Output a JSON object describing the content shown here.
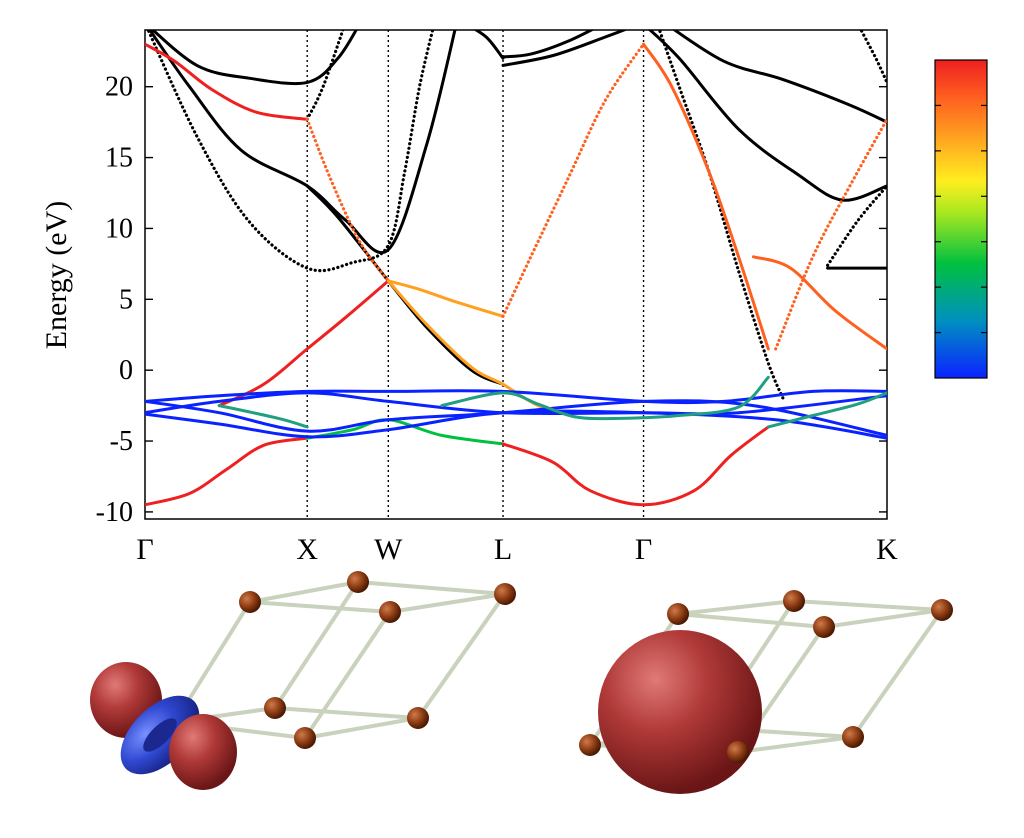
{
  "chart_data": {
    "type": "line",
    "title": "",
    "ylabel": "Energy (eV)",
    "xlabel": "",
    "ylim": [
      -10.5,
      24
    ],
    "xlim": [
      0,
      1
    ],
    "y_ticks": [
      -10,
      -5,
      0,
      5,
      10,
      15,
      20
    ],
    "k_points": [
      {
        "label": "Γ",
        "x": 0.0
      },
      {
        "label": "X",
        "x": 0.2186
      },
      {
        "label": "W",
        "x": 0.3279
      },
      {
        "label": "L",
        "x": 0.4825
      },
      {
        "label": "Γ",
        "x": 0.6719
      },
      {
        "label": "K",
        "x": 1.0
      }
    ],
    "colorbar": {
      "orientation": "vertical",
      "colors_bottom_to_top": [
        "#0a22ff",
        "#0090c0",
        "#00c040",
        "#a8e820",
        "#ffee20",
        "#ffa020",
        "#ff6020",
        "#ee2020"
      ],
      "tick_count": 6,
      "placement": "right"
    },
    "series": [
      {
        "color": "#000000",
        "style": "solid",
        "points": [
          [
            0.0,
            24.5
          ],
          [
            0.07,
            21.5
          ],
          [
            0.14,
            20.6
          ],
          [
            0.2186,
            20.3
          ],
          [
            0.26,
            22.0
          ],
          [
            0.29,
            24.5
          ]
        ]
      },
      {
        "color": "#000000",
        "style": "solid",
        "points": [
          [
            0.0,
            24.5
          ],
          [
            0.06,
            20.0
          ],
          [
            0.13,
            15.5
          ],
          [
            0.2186,
            13.0
          ],
          [
            0.27,
            10.6
          ],
          [
            0.3279,
            8.5
          ],
          [
            0.38,
            16.0
          ],
          [
            0.42,
            24.5
          ]
        ]
      },
      {
        "color": "#000000",
        "style": "dotted",
        "points": [
          [
            0.0,
            24.5
          ],
          [
            0.07,
            16.5
          ],
          [
            0.14,
            10.5
          ],
          [
            0.2186,
            7.2
          ],
          [
            0.28,
            7.6
          ],
          [
            0.3279,
            8.8
          ],
          [
            0.35,
            14.0
          ],
          [
            0.37,
            20.0
          ],
          [
            0.39,
            24.5
          ]
        ]
      },
      {
        "color": "#000000",
        "style": "dotted",
        "points": [
          [
            0.2186,
            17.7
          ],
          [
            0.24,
            20.0
          ],
          [
            0.27,
            24.5
          ]
        ]
      },
      {
        "color": "#000000",
        "style": "solid",
        "points": [
          [
            0.2186,
            13.0
          ],
          [
            0.26,
            10.8
          ],
          [
            0.3279,
            6.3
          ],
          [
            0.38,
            3.0
          ],
          [
            0.44,
            0.0
          ],
          [
            0.4825,
            -1.0
          ]
        ]
      },
      {
        "color": "#000000",
        "style": "solid",
        "points": [
          [
            0.4825,
            21.5
          ],
          [
            0.55,
            22.2
          ],
          [
            0.62,
            23.5
          ],
          [
            0.67,
            24.5
          ]
        ]
      },
      {
        "color": "#000000",
        "style": "solid",
        "points": [
          [
            0.4825,
            22.1
          ],
          [
            0.52,
            22.3
          ],
          [
            0.57,
            23.2
          ],
          [
            0.62,
            24.5
          ]
        ]
      },
      {
        "color": "#000000",
        "style": "solid",
        "points": [
          [
            0.43,
            24.5
          ],
          [
            0.46,
            23.5
          ],
          [
            0.4825,
            22.0
          ]
        ]
      },
      {
        "color": "#000000",
        "style": "solid",
        "points": [
          [
            0.7,
            24.5
          ],
          [
            0.78,
            21.8
          ],
          [
            0.86,
            20.5
          ],
          [
            0.95,
            18.7
          ],
          [
            1.0,
            17.5
          ]
        ]
      },
      {
        "color": "#000000",
        "style": "solid",
        "points": [
          [
            0.67,
            24.5
          ],
          [
            0.72,
            22.0
          ],
          [
            0.8,
            17.0
          ],
          [
            0.88,
            13.8
          ],
          [
            0.94,
            12.0
          ],
          [
            1.0,
            13.0
          ]
        ]
      },
      {
        "color": "#000000",
        "style": "dotted",
        "points": [
          [
            0.69,
            24.5
          ],
          [
            0.72,
            20.0
          ],
          [
            0.76,
            14.0
          ],
          [
            0.8,
            7.0
          ],
          [
            0.84,
            0.5
          ],
          [
            0.86,
            -2.0
          ]
        ]
      },
      {
        "color": "#000000",
        "style": "solid",
        "points": [
          [
            0.92,
            7.2
          ],
          [
            0.96,
            7.2
          ],
          [
            1.0,
            7.2
          ]
        ]
      },
      {
        "color": "#000000",
        "style": "dotted",
        "points": [
          [
            0.92,
            7.4
          ],
          [
            0.96,
            10.5
          ],
          [
            1.0,
            13.0
          ]
        ]
      },
      {
        "color": "#000000",
        "style": "dotted",
        "points": [
          [
            0.96,
            24.5
          ],
          [
            0.985,
            22.0
          ],
          [
            1.0,
            20.3
          ]
        ]
      },
      {
        "color": "#ee2020",
        "style": "solid",
        "points": [
          [
            0.0,
            23.0
          ],
          [
            0.04,
            21.8
          ],
          [
            0.09,
            19.8
          ],
          [
            0.15,
            18.2
          ],
          [
            0.2186,
            17.7
          ]
        ]
      },
      {
        "color": "#ff6020",
        "style": "dotted",
        "points": [
          [
            0.2186,
            17.7
          ],
          [
            0.25,
            13.5
          ],
          [
            0.29,
            9.0
          ],
          [
            0.3279,
            6.3
          ]
        ]
      },
      {
        "color": "#ffa020",
        "style": "solid",
        "points": [
          [
            0.3279,
            6.3
          ],
          [
            0.37,
            5.7
          ],
          [
            0.42,
            4.8
          ],
          [
            0.4825,
            3.8
          ]
        ]
      },
      {
        "color": "#ff6020",
        "style": "dotted",
        "points": [
          [
            0.4825,
            3.8
          ],
          [
            0.52,
            8.0
          ],
          [
            0.57,
            13.5
          ],
          [
            0.62,
            19.0
          ],
          [
            0.6719,
            23.0
          ]
        ]
      },
      {
        "color": "#ff6020",
        "style": "solid",
        "points": [
          [
            0.6719,
            23.0
          ],
          [
            0.71,
            20.0
          ],
          [
            0.76,
            14.0
          ],
          [
            0.8,
            8.0
          ],
          [
            0.84,
            1.5
          ]
        ]
      },
      {
        "color": "#ff6020",
        "style": "dotted",
        "points": [
          [
            0.85,
            1.5
          ],
          [
            0.9,
            8.0
          ],
          [
            0.95,
            13.0
          ],
          [
            1.0,
            17.7
          ]
        ]
      },
      {
        "color": "#ff6020",
        "style": "solid",
        "points": [
          [
            0.82,
            8.0
          ],
          [
            0.87,
            7.2
          ],
          [
            0.93,
            4.2
          ],
          [
            1.0,
            1.5
          ]
        ]
      },
      {
        "color": "#ee2020",
        "style": "solid",
        "points": [
          [
            0.1,
            -2.5
          ],
          [
            0.16,
            -1.0
          ],
          [
            0.2186,
            1.5
          ],
          [
            0.27,
            3.7
          ],
          [
            0.3279,
            6.3
          ]
        ]
      },
      {
        "color": "#ffa020",
        "style": "solid",
        "points": [
          [
            0.3279,
            6.3
          ],
          [
            0.38,
            3.2
          ],
          [
            0.44,
            0.2
          ],
          [
            0.4825,
            -1.0
          ],
          [
            0.53,
            -2.5
          ],
          [
            0.58,
            -3.3
          ]
        ]
      },
      {
        "color": "#ee2020",
        "style": "solid",
        "points": [
          [
            0.0,
            -9.5
          ],
          [
            0.06,
            -8.7
          ],
          [
            0.11,
            -7.0
          ],
          [
            0.16,
            -5.3
          ],
          [
            0.2186,
            -4.8
          ]
        ]
      },
      {
        "color": "#00c040",
        "style": "solid",
        "points": [
          [
            0.2186,
            -4.8
          ],
          [
            0.28,
            -4.2
          ],
          [
            0.3279,
            -3.5
          ],
          [
            0.4,
            -4.6
          ],
          [
            0.4825,
            -5.2
          ]
        ]
      },
      {
        "color": "#ee2020",
        "style": "solid",
        "points": [
          [
            0.4825,
            -5.2
          ],
          [
            0.55,
            -6.5
          ],
          [
            0.6,
            -8.5
          ],
          [
            0.6719,
            -9.5
          ],
          [
            0.74,
            -8.5
          ],
          [
            0.79,
            -6.0
          ],
          [
            0.84,
            -4.0
          ]
        ]
      },
      {
        "color": "#0a22ff",
        "style": "solid",
        "points": [
          [
            0.0,
            -2.2
          ],
          [
            0.1,
            -1.8
          ],
          [
            0.2186,
            -1.5
          ],
          [
            0.3279,
            -1.5
          ],
          [
            0.4825,
            -1.5
          ],
          [
            0.6719,
            -2.2
          ],
          [
            0.78,
            -2.2
          ],
          [
            0.9,
            -1.5
          ],
          [
            1.0,
            -1.5
          ]
        ]
      },
      {
        "color": "#0a22ff",
        "style": "solid",
        "points": [
          [
            0.0,
            -3.0
          ],
          [
            0.1,
            -2.2
          ],
          [
            0.2186,
            -1.6
          ],
          [
            0.3279,
            -2.2
          ],
          [
            0.4825,
            -3.0
          ],
          [
            0.6719,
            -3.0
          ],
          [
            0.8,
            -3.0
          ],
          [
            1.0,
            -1.8
          ]
        ]
      },
      {
        "color": "#0a22ff",
        "style": "solid",
        "points": [
          [
            0.0,
            -2.2
          ],
          [
            0.1,
            -3.0
          ],
          [
            0.2186,
            -4.3
          ],
          [
            0.3279,
            -3.5
          ],
          [
            0.4825,
            -3.0
          ],
          [
            0.6719,
            -2.2
          ],
          [
            0.82,
            -2.5
          ],
          [
            1.0,
            -4.6
          ]
        ]
      },
      {
        "color": "#0a22ff",
        "style": "solid",
        "points": [
          [
            0.0,
            -3.1
          ],
          [
            0.1,
            -3.8
          ],
          [
            0.2186,
            -4.7
          ],
          [
            0.3279,
            -4.2
          ],
          [
            0.4825,
            -3.0
          ],
          [
            0.6719,
            -3.0
          ],
          [
            0.85,
            -3.5
          ],
          [
            1.0,
            -4.8
          ]
        ]
      },
      {
        "color": "#20a080",
        "style": "solid",
        "points": [
          [
            0.1,
            -2.5
          ],
          [
            0.18,
            -3.4
          ],
          [
            0.2186,
            -4.0
          ]
        ]
      },
      {
        "color": "#20a080",
        "style": "solid",
        "points": [
          [
            0.4,
            -2.5
          ],
          [
            0.4825,
            -1.6
          ],
          [
            0.53,
            -2.4
          ],
          [
            0.58,
            -3.3
          ],
          [
            0.64,
            -3.4
          ],
          [
            0.72,
            -3.2
          ],
          [
            0.8,
            -2.6
          ],
          [
            0.84,
            -0.5
          ]
        ]
      },
      {
        "color": "#20a080",
        "style": "solid",
        "points": [
          [
            0.84,
            -4.0
          ],
          [
            0.9,
            -3.2
          ],
          [
            0.96,
            -2.4
          ],
          [
            1.0,
            -1.6
          ]
        ]
      }
    ]
  },
  "figures": {
    "left_caption": "",
    "right_caption": ""
  }
}
